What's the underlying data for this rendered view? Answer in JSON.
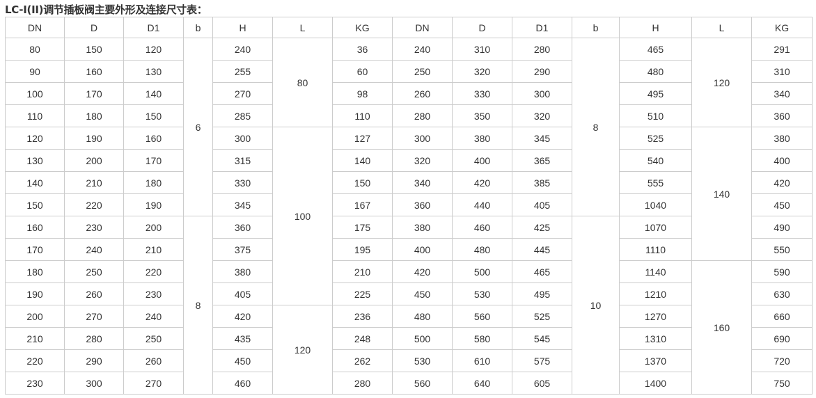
{
  "title": "LC-I(II)调节插板阀主要外形及连接尺寸表：",
  "headers": [
    "DN",
    "D",
    "D1",
    "b",
    "H",
    "L",
    "KG",
    "DN",
    "D",
    "D1",
    "b",
    "H",
    "L",
    "KG"
  ],
  "left": {
    "rows": [
      {
        "DN": "80",
        "D": "150",
        "D1": "120",
        "H": "240",
        "KG": "36"
      },
      {
        "DN": "90",
        "D": "160",
        "D1": "130",
        "H": "255",
        "KG": "60"
      },
      {
        "DN": "100",
        "D": "170",
        "D1": "140",
        "H": "270",
        "KG": "98"
      },
      {
        "DN": "110",
        "D": "180",
        "D1": "150",
        "H": "285",
        "KG": "110"
      },
      {
        "DN": "120",
        "D": "190",
        "D1": "160",
        "H": "300",
        "KG": "127"
      },
      {
        "DN": "130",
        "D": "200",
        "D1": "170",
        "H": "315",
        "KG": "140"
      },
      {
        "DN": "140",
        "D": "210",
        "D1": "180",
        "H": "330",
        "KG": "150"
      },
      {
        "DN": "150",
        "D": "220",
        "D1": "190",
        "H": "345",
        "KG": "167"
      },
      {
        "DN": "160",
        "D": "230",
        "D1": "200",
        "H": "360",
        "KG": "175"
      },
      {
        "DN": "170",
        "D": "240",
        "D1": "210",
        "H": "375",
        "KG": "195"
      },
      {
        "DN": "180",
        "D": "250",
        "D1": "220",
        "H": "380",
        "KG": "210"
      },
      {
        "DN": "190",
        "D": "260",
        "D1": "230",
        "H": "405",
        "KG": "225"
      },
      {
        "DN": "200",
        "D": "270",
        "D1": "240",
        "H": "420",
        "KG": "236"
      },
      {
        "DN": "210",
        "D": "280",
        "D1": "250",
        "H": "435",
        "KG": "248"
      },
      {
        "DN": "220",
        "D": "290",
        "D1": "260",
        "H": "450",
        "KG": "262"
      },
      {
        "DN": "230",
        "D": "300",
        "D1": "270",
        "H": "460",
        "KG": "280"
      }
    ],
    "b_groups": [
      {
        "value": "6",
        "rows": 8
      },
      {
        "value": "8",
        "rows": 8
      }
    ],
    "L_groups": [
      {
        "value": "80",
        "rows": 4
      },
      {
        "value": "100",
        "rows": 8
      },
      {
        "value": "120",
        "rows": 4
      }
    ]
  },
  "right": {
    "rows": [
      {
        "DN": "240",
        "D": "310",
        "D1": "280",
        "H": "465",
        "KG": "291"
      },
      {
        "DN": "250",
        "D": "320",
        "D1": "290",
        "H": "480",
        "KG": "310"
      },
      {
        "DN": "260",
        "D": "330",
        "D1": "300",
        "H": "495",
        "KG": "340"
      },
      {
        "DN": "280",
        "D": "350",
        "D1": "320",
        "H": "510",
        "KG": "360"
      },
      {
        "DN": "300",
        "D": "380",
        "D1": "345",
        "H": "525",
        "KG": "380"
      },
      {
        "DN": "320",
        "D": "400",
        "D1": "365",
        "H": "540",
        "KG": "400"
      },
      {
        "DN": "340",
        "D": "420",
        "D1": "385",
        "H": "555",
        "KG": "420"
      },
      {
        "DN": "360",
        "D": "440",
        "D1": "405",
        "H": "1040",
        "KG": "450"
      },
      {
        "DN": "380",
        "D": "460",
        "D1": "425",
        "H": "1070",
        "KG": "490"
      },
      {
        "DN": "400",
        "D": "480",
        "D1": "445",
        "H": "1110",
        "KG": "550"
      },
      {
        "DN": "420",
        "D": "500",
        "D1": "465",
        "H": "1140",
        "KG": "590"
      },
      {
        "DN": "450",
        "D": "530",
        "D1": "495",
        "H": "1210",
        "KG": "630"
      },
      {
        "DN": "480",
        "D": "560",
        "D1": "525",
        "H": "1270",
        "KG": "660"
      },
      {
        "DN": "500",
        "D": "580",
        "D1": "545",
        "H": "1310",
        "KG": "690"
      },
      {
        "DN": "530",
        "D": "610",
        "D1": "575",
        "H": "1370",
        "KG": "720"
      },
      {
        "DN": "560",
        "D": "640",
        "D1": "605",
        "H": "1400",
        "KG": "750"
      }
    ],
    "b_groups": [
      {
        "value": "8",
        "rows": 8
      },
      {
        "value": "10",
        "rows": 8
      }
    ],
    "L_groups": [
      {
        "value": "120",
        "rows": 4
      },
      {
        "value": "140",
        "rows": 6
      },
      {
        "value": "160",
        "rows": 6
      }
    ]
  }
}
